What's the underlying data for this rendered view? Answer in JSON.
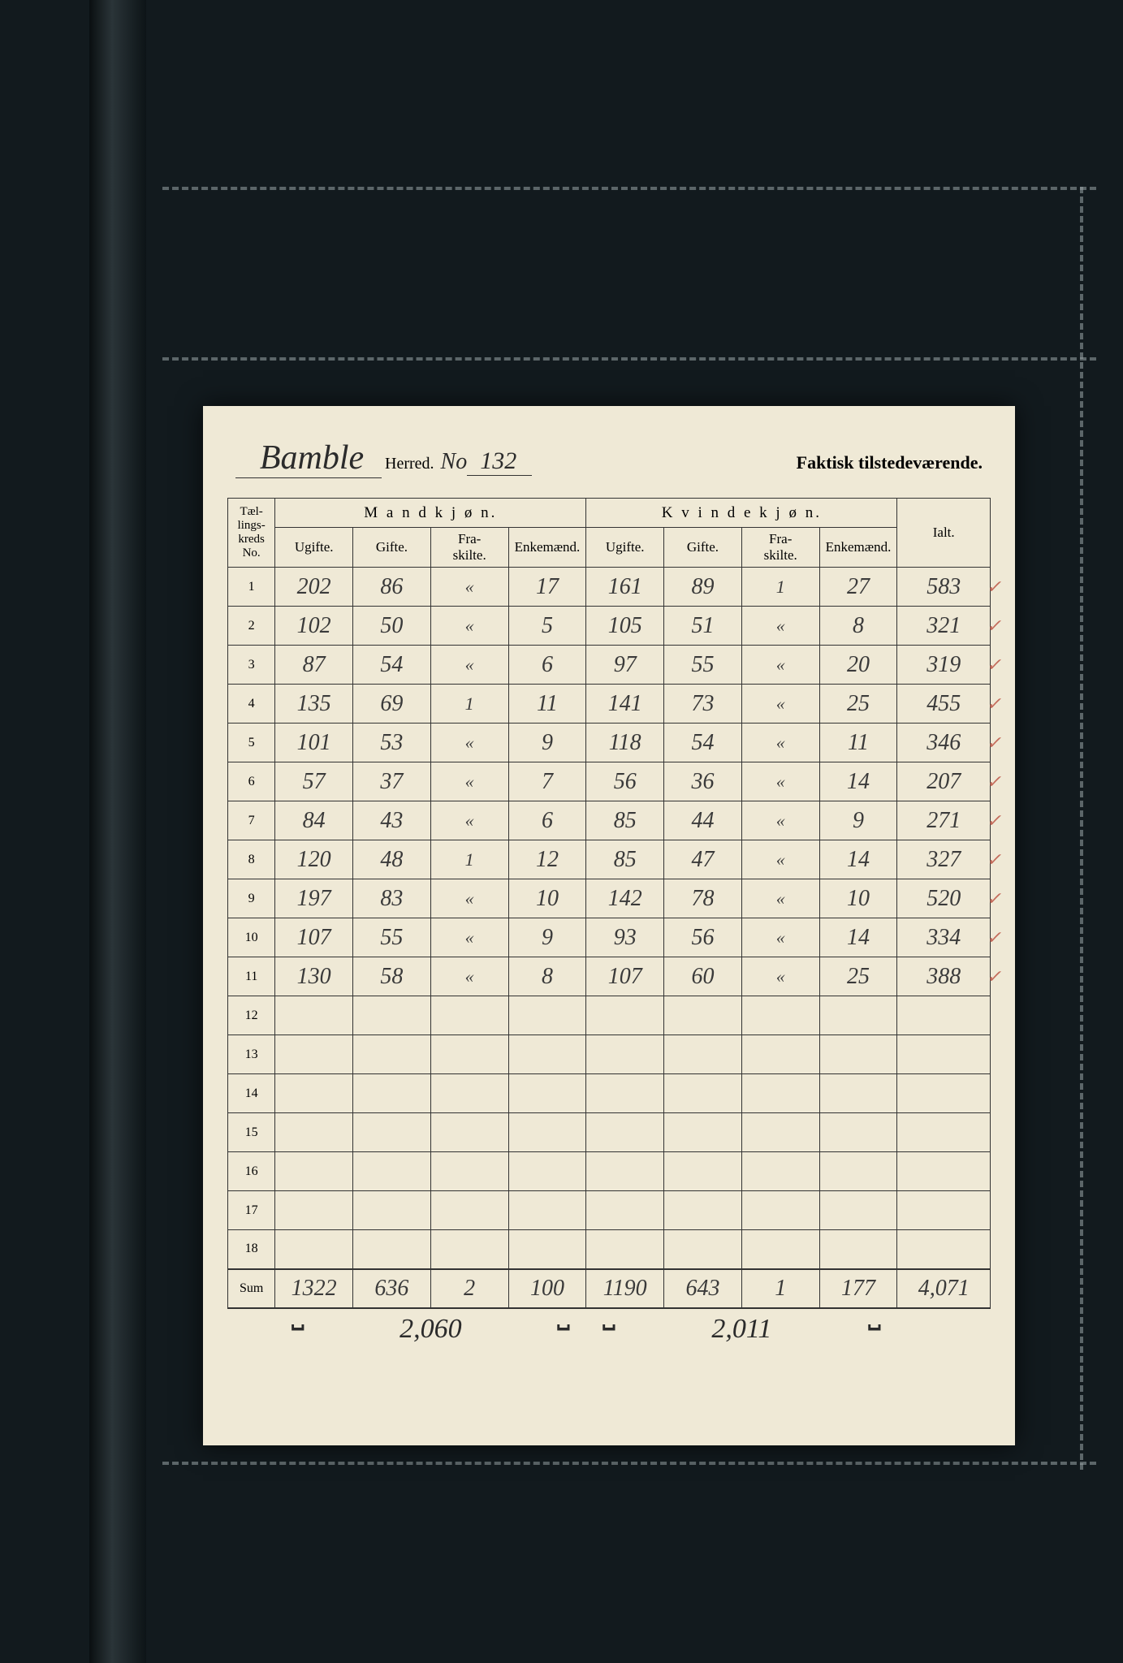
{
  "background_color": "#121a1e",
  "paper_color": "#efe9d6",
  "ink_color": "#2b2b2b",
  "check_color": "#c36a5a",
  "header": {
    "district_name": "Bamble",
    "herred_label": "Herred.",
    "no_label": "No",
    "district_no": "132",
    "right_label": "Faktisk tilstedeværende."
  },
  "columns": {
    "kreds": "Tæl-\nlings-\nkreds\nNo.",
    "mand": "M a n d k j ø n.",
    "kvind": "K v i n d e k j ø n.",
    "ugifte": "Ugifte.",
    "gifte": "Gifte.",
    "fraskilte": "Fra-\nskilte.",
    "enkemaend": "Enkemænd.",
    "ialt": "Ialt."
  },
  "rows": [
    {
      "no": "1",
      "m_u": "202",
      "m_g": "86",
      "m_f": "«",
      "m_e": "17",
      "k_u": "161",
      "k_g": "89",
      "k_f": "1",
      "k_e": "27",
      "ialt": "583",
      "chk": "✓"
    },
    {
      "no": "2",
      "m_u": "102",
      "m_g": "50",
      "m_f": "«",
      "m_e": "5",
      "k_u": "105",
      "k_g": "51",
      "k_f": "«",
      "k_e": "8",
      "ialt": "321",
      "chk": "✓"
    },
    {
      "no": "3",
      "m_u": "87",
      "m_g": "54",
      "m_f": "«",
      "m_e": "6",
      "k_u": "97",
      "k_g": "55",
      "k_f": "«",
      "k_e": "20",
      "ialt": "319",
      "chk": "✓"
    },
    {
      "no": "4",
      "m_u": "135",
      "m_g": "69",
      "m_f": "1",
      "m_e": "11",
      "k_u": "141",
      "k_g": "73",
      "k_f": "«",
      "k_e": "25",
      "ialt": "455",
      "chk": "✓"
    },
    {
      "no": "5",
      "m_u": "101",
      "m_g": "53",
      "m_f": "«",
      "m_e": "9",
      "k_u": "118",
      "k_g": "54",
      "k_f": "«",
      "k_e": "11",
      "ialt": "346",
      "chk": "✓"
    },
    {
      "no": "6",
      "m_u": "57",
      "m_g": "37",
      "m_f": "«",
      "m_e": "7",
      "k_u": "56",
      "k_g": "36",
      "k_f": "«",
      "k_e": "14",
      "ialt": "207",
      "chk": "✓"
    },
    {
      "no": "7",
      "m_u": "84",
      "m_g": "43",
      "m_f": "«",
      "m_e": "6",
      "k_u": "85",
      "k_g": "44",
      "k_f": "«",
      "k_e": "9",
      "ialt": "271",
      "chk": "✓"
    },
    {
      "no": "8",
      "m_u": "120",
      "m_g": "48",
      "m_f": "1",
      "m_e": "12",
      "k_u": "85",
      "k_g": "47",
      "k_f": "«",
      "k_e": "14",
      "ialt": "327",
      "chk": "✓"
    },
    {
      "no": "9",
      "m_u": "197",
      "m_g": "83",
      "m_f": "«",
      "m_e": "10",
      "k_u": "142",
      "k_g": "78",
      "k_f": "«",
      "k_e": "10",
      "ialt": "520",
      "chk": "✓"
    },
    {
      "no": "10",
      "m_u": "107",
      "m_g": "55",
      "m_f": "«",
      "m_e": "9",
      "k_u": "93",
      "k_g": "56",
      "k_f": "«",
      "k_e": "14",
      "ialt": "334",
      "chk": "✓"
    },
    {
      "no": "11",
      "m_u": "130",
      "m_g": "58",
      "m_f": "«",
      "m_e": "8",
      "k_u": "107",
      "k_g": "60",
      "k_f": "«",
      "k_e": "25",
      "ialt": "388",
      "chk": "✓"
    },
    {
      "no": "12",
      "m_u": "",
      "m_g": "",
      "m_f": "",
      "m_e": "",
      "k_u": "",
      "k_g": "",
      "k_f": "",
      "k_e": "",
      "ialt": "",
      "chk": ""
    },
    {
      "no": "13",
      "m_u": "",
      "m_g": "",
      "m_f": "",
      "m_e": "",
      "k_u": "",
      "k_g": "",
      "k_f": "",
      "k_e": "",
      "ialt": "",
      "chk": ""
    },
    {
      "no": "14",
      "m_u": "",
      "m_g": "",
      "m_f": "",
      "m_e": "",
      "k_u": "",
      "k_g": "",
      "k_f": "",
      "k_e": "",
      "ialt": "",
      "chk": ""
    },
    {
      "no": "15",
      "m_u": "",
      "m_g": "",
      "m_f": "",
      "m_e": "",
      "k_u": "",
      "k_g": "",
      "k_f": "",
      "k_e": "",
      "ialt": "",
      "chk": ""
    },
    {
      "no": "16",
      "m_u": "",
      "m_g": "",
      "m_f": "",
      "m_e": "",
      "k_u": "",
      "k_g": "",
      "k_f": "",
      "k_e": "",
      "ialt": "",
      "chk": ""
    },
    {
      "no": "17",
      "m_u": "",
      "m_g": "",
      "m_f": "",
      "m_e": "",
      "k_u": "",
      "k_g": "",
      "k_f": "",
      "k_e": "",
      "ialt": "",
      "chk": ""
    },
    {
      "no": "18",
      "m_u": "",
      "m_g": "",
      "m_f": "",
      "m_e": "",
      "k_u": "",
      "k_g": "",
      "k_f": "",
      "k_e": "",
      "ialt": "",
      "chk": ""
    }
  ],
  "sum": {
    "label": "Sum",
    "m_u": "1322",
    "m_g": "636",
    "m_f": "2",
    "m_e": "100",
    "k_u": "1190",
    "k_g": "643",
    "k_f": "1",
    "k_e": "177",
    "ialt": "4,071"
  },
  "subtotals": {
    "mand": "2,060",
    "kvind": "2,011"
  }
}
